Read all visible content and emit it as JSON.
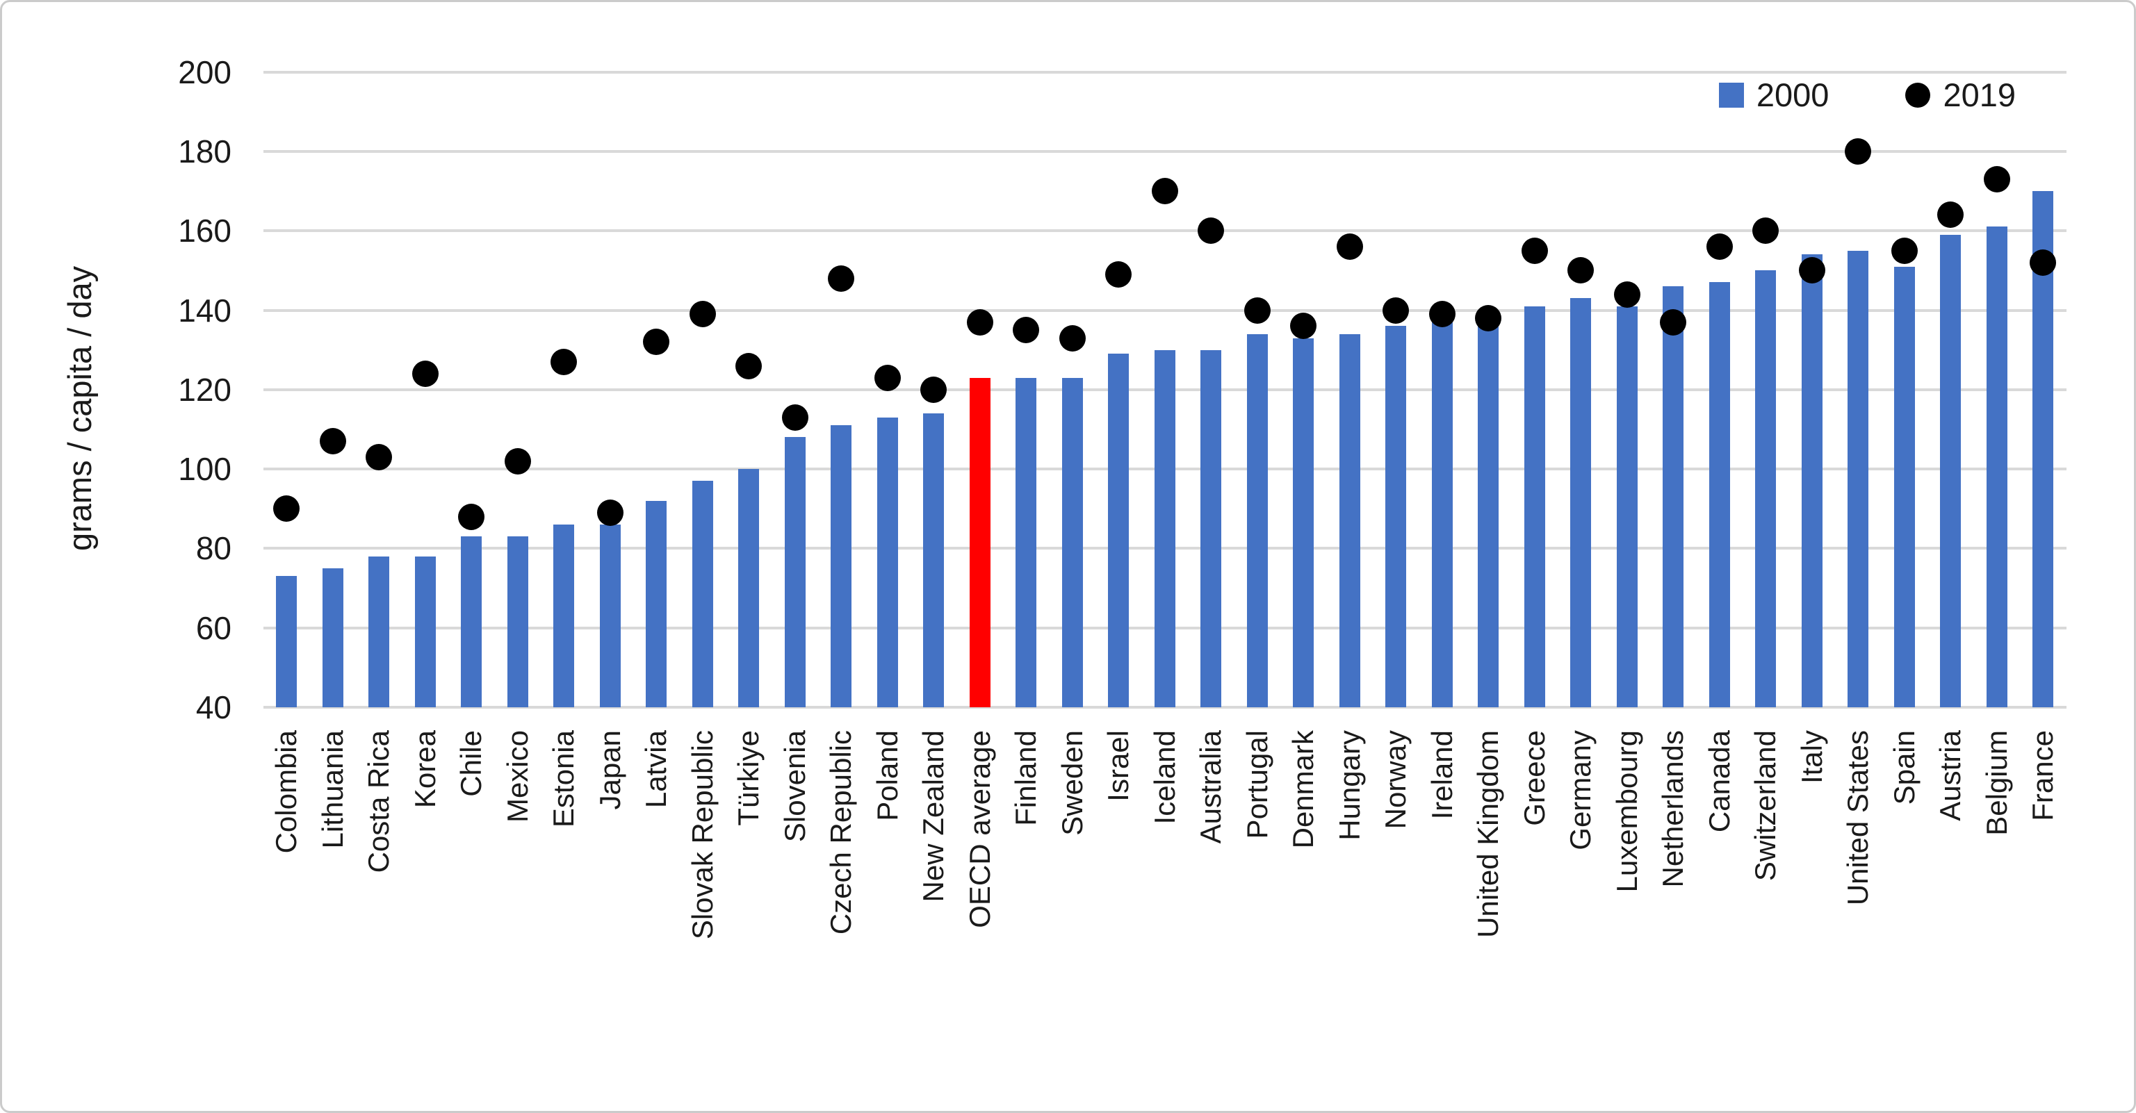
{
  "chart_data": {
    "type": "bar",
    "title": "",
    "xlabel": "",
    "ylabel": "grams / capita / day",
    "ylim": [
      40,
      200
    ],
    "yticks": [
      40,
      60,
      80,
      100,
      120,
      140,
      160,
      180,
      200
    ],
    "grid": true,
    "legend_position": "top-right",
    "categories": [
      "Colombia",
      "Lithuania",
      "Costa Rica",
      "Korea",
      "Chile",
      "Mexico",
      "Estonia",
      "Japan",
      "Latvia",
      "Slovak Republic",
      "Türkiye",
      "Slovenia",
      "Czech Republic",
      "Poland",
      "New Zealand",
      "OECD average",
      "Finland",
      "Sweden",
      "Israel",
      "Iceland",
      "Australia",
      "Portugal",
      "Denmark",
      "Hungary",
      "Norway",
      "Ireland",
      "United Kingdom",
      "Greece",
      "Germany",
      "Luxembourg",
      "Netherlands",
      "Canada",
      "Switzerland",
      "Italy",
      "United States",
      "Spain",
      "Austria",
      "Belgium",
      "France"
    ],
    "series": [
      {
        "name": "2000",
        "type": "bar",
        "color": "#4472C4",
        "values": [
          73,
          75,
          78,
          78,
          83,
          83,
          86,
          86,
          92,
          97,
          100,
          108,
          111,
          113,
          114,
          123,
          123,
          123,
          129,
          130,
          130,
          134,
          133,
          134,
          136,
          137,
          136,
          141,
          143,
          141,
          146,
          147,
          150,
          154,
          155,
          151,
          159,
          161,
          170
        ]
      },
      {
        "name": "2019",
        "type": "scatter",
        "color": "#000000",
        "values": [
          90,
          107,
          103,
          124,
          88,
          102,
          127,
          89,
          132,
          139,
          126,
          113,
          148,
          123,
          120,
          137,
          135,
          133,
          149,
          170,
          160,
          140,
          136,
          156,
          140,
          139,
          138,
          155,
          150,
          144,
          137,
          156,
          160,
          150,
          180,
          155,
          164,
          173,
          152
        ]
      }
    ],
    "highlight_category": "OECD average",
    "highlight_color": "#FF0000",
    "gridline_color": "#D9D9D9",
    "background_color": "#FFFFFF"
  }
}
